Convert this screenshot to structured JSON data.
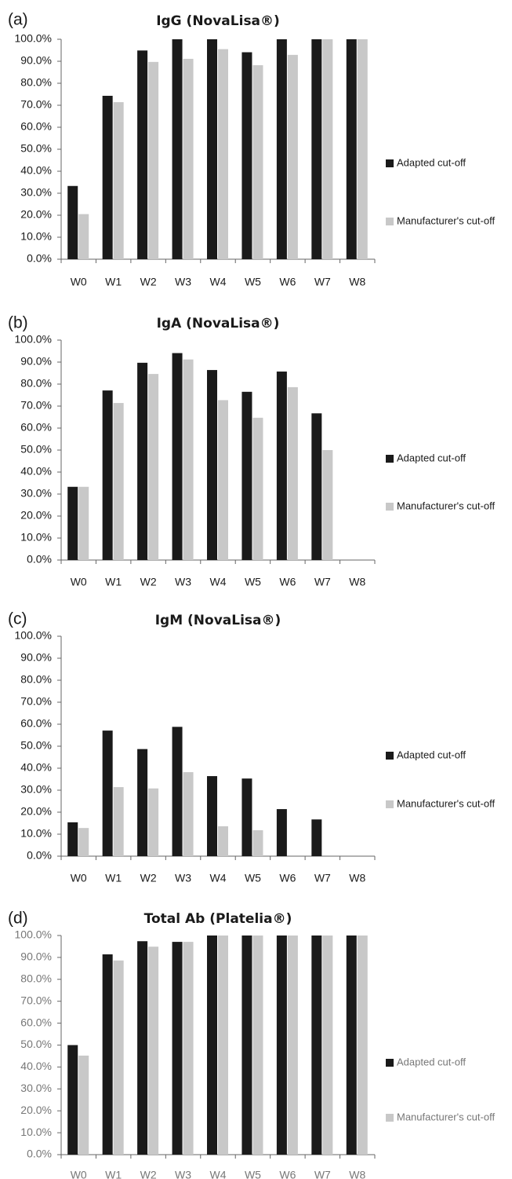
{
  "chart_data": [
    {
      "type": "bar",
      "panel": "(a)",
      "title": "IgG (NovaLisa®)",
      "categories": [
        "W0",
        "W1",
        "W2",
        "W3",
        "W4",
        "W5",
        "W6",
        "W7",
        "W8"
      ],
      "yticks": [
        "0.0%",
        "10.0%",
        "20.0%",
        "30.0%",
        "40.0%",
        "50.0%",
        "60.0%",
        "70.0%",
        "80.0%",
        "90.0%",
        "100.0%"
      ],
      "ylim": [
        0,
        100
      ],
      "legend_position": "right",
      "series": [
        {
          "name": "Adapted cut-off",
          "color": "#1a1a1a",
          "values": [
            33.3,
            74.3,
            94.9,
            100,
            100,
            94.1,
            100,
            100,
            100
          ]
        },
        {
          "name": "Manufacturer's cut-off",
          "color": "#c8c8c8",
          "values": [
            20.5,
            71.4,
            89.7,
            91.1,
            95.5,
            88.2,
            92.9,
            100,
            100
          ]
        }
      ]
    },
    {
      "type": "bar",
      "panel": "(b)",
      "title": "IgA (NovaLisa®)",
      "categories": [
        "W0",
        "W1",
        "W2",
        "W3",
        "W4",
        "W5",
        "W6",
        "W7",
        "W8"
      ],
      "yticks": [
        "0.0%",
        "10.0%",
        "20.0%",
        "30.0%",
        "40.0%",
        "50.0%",
        "60.0%",
        "70.0%",
        "80.0%",
        "90.0%",
        "100.0%"
      ],
      "ylim": [
        0,
        100
      ],
      "legend_position": "right",
      "series": [
        {
          "name": "Adapted cut-off",
          "color": "#1a1a1a",
          "values": [
            33.3,
            77.1,
            89.7,
            94.1,
            86.4,
            76.5,
            85.7,
            66.7,
            0
          ]
        },
        {
          "name": "Manufacturer's cut-off",
          "color": "#c8c8c8",
          "values": [
            33.3,
            71.4,
            84.6,
            91.2,
            72.7,
            64.7,
            78.6,
            50.0,
            0
          ]
        }
      ]
    },
    {
      "type": "bar",
      "panel": "(c)",
      "title": "IgM (NovaLisa®)",
      "categories": [
        "W0",
        "W1",
        "W2",
        "W3",
        "W4",
        "W5",
        "W6",
        "W7",
        "W8"
      ],
      "yticks": [
        "0.0%",
        "10.0%",
        "20.0%",
        "30.0%",
        "40.0%",
        "50.0%",
        "60.0%",
        "70.0%",
        "80.0%",
        "90.0%",
        "100.0%"
      ],
      "ylim": [
        0,
        100
      ],
      "legend_position": "right",
      "series": [
        {
          "name": "Adapted cut-off",
          "color": "#1a1a1a",
          "values": [
            15.4,
            57.1,
            48.7,
            58.8,
            36.4,
            35.3,
            21.4,
            16.7,
            0
          ]
        },
        {
          "name": "Manufacturer's cut-off",
          "color": "#c8c8c8",
          "values": [
            12.8,
            31.4,
            30.8,
            38.2,
            13.6,
            11.8,
            0,
            0,
            0
          ]
        }
      ]
    },
    {
      "type": "bar",
      "panel": "(d)",
      "title": "Total Ab (Platelia®)",
      "categories": [
        "W0",
        "W1",
        "W2",
        "W3",
        "W4",
        "W5",
        "W6",
        "W7",
        "W8"
      ],
      "yticks": [
        "0.0%",
        "10.0%",
        "20.0%",
        "30.0%",
        "40.0%",
        "50.0%",
        "60.0%",
        "70.0%",
        "80.0%",
        "90.0%",
        "100.0%"
      ],
      "ylim": [
        0,
        100
      ],
      "legend_position": "right",
      "faded_labels": true,
      "series": [
        {
          "name": "Adapted cut-off",
          "color": "#1a1a1a",
          "values": [
            50.0,
            91.4,
            97.4,
            97.1,
            100,
            100,
            100,
            100,
            100
          ]
        },
        {
          "name": "Manufacturer's cut-off",
          "color": "#c8c8c8",
          "values": [
            45.2,
            88.6,
            94.9,
            97.1,
            100,
            100,
            100,
            100,
            100
          ]
        }
      ]
    }
  ]
}
